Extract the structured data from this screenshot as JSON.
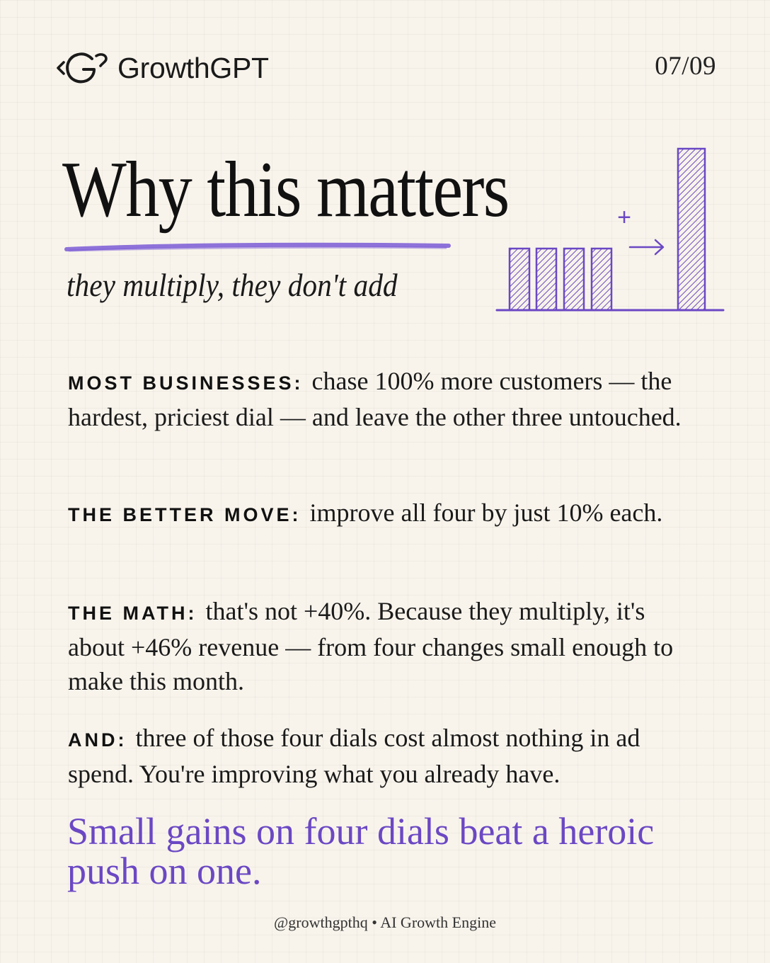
{
  "header": {
    "brand_name": "GrowthGPT",
    "logo_icon": "growthgpt-logo-icon",
    "page_indicator": "07/09"
  },
  "hero": {
    "title": "Why this matters",
    "subtitle": "they multiply, they don't add",
    "illustration": {
      "icon": "bar-chart-growth-icon",
      "plus_symbol": "+",
      "bar_levels": [
        0.38,
        0.38,
        0.38,
        0.38,
        1.0
      ]
    }
  },
  "sections": [
    {
      "label": "MOST BUSINESSES:",
      "text": "chase 100% more customers — the hardest, priciest dial — and leave the other three untouched."
    },
    {
      "label": "THE BETTER MOVE:",
      "text": "improve all four by just 10% each."
    },
    {
      "label": "THE MATH:",
      "text": "that's not +40%. Because they multiply, it's about +46% revenue — from four changes small enough to make this month."
    },
    {
      "label": "AND:",
      "text": "three of those four dials cost almost nothing in ad spend. You're improving what you already have."
    }
  ],
  "closing": "Small gains on four dials beat a heroic push on one.",
  "footer": {
    "handle": "@growthgpthq",
    "separator": "•",
    "tagline": "AI Growth Engine"
  },
  "colors": {
    "background": "#f8f4ec",
    "accent": "#6b48c4",
    "text": "#1a1a1a"
  }
}
